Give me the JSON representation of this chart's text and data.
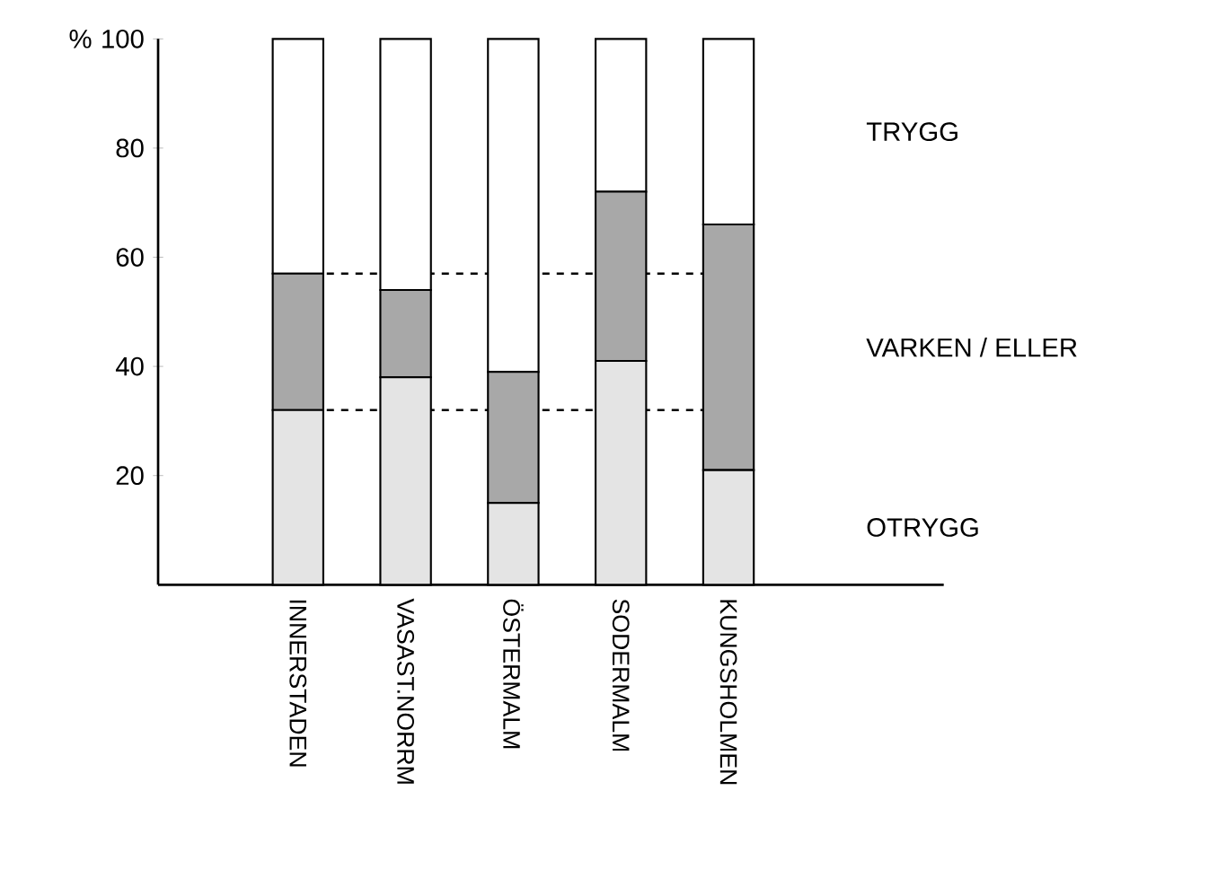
{
  "chart_data": {
    "type": "bar",
    "stacked": true,
    "ylabel": "%",
    "categories": [
      "INNERSTADEN",
      "VASAST.NORRM",
      "ÖSTERMALM",
      "SODERMALM",
      "KUNGSHOLMEN"
    ],
    "series": [
      {
        "name": "OTRYGG",
        "color": "#e4e4e4",
        "values": [
          32,
          38,
          15,
          41,
          21
        ]
      },
      {
        "name": "VARKEN / ELLER",
        "color": "#a8a8a8",
        "values": [
          25,
          16,
          24,
          31,
          45
        ]
      },
      {
        "name": "TRYGG",
        "color": "#ffffff",
        "values": [
          43,
          46,
          61,
          28,
          34
        ]
      }
    ],
    "ylim": [
      0,
      100
    ],
    "yticks": [
      20,
      40,
      60,
      80,
      100
    ],
    "ref_lines": [
      {
        "axis": "y",
        "value": 57,
        "line_style": "dashed"
      },
      {
        "axis": "y",
        "value": 32,
        "line_style": "dashed"
      }
    ],
    "legend": "right",
    "grid": false
  }
}
